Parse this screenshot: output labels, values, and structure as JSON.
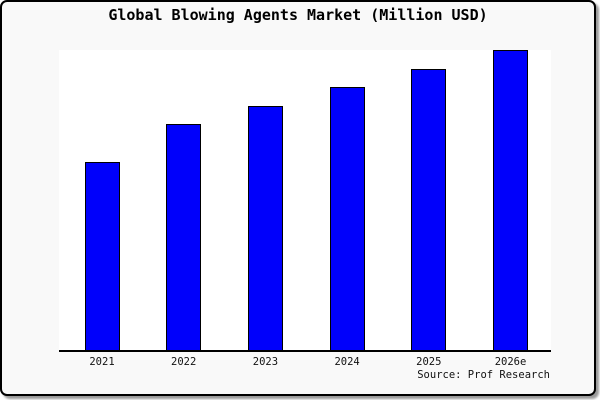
{
  "title": "Global Blowing Agents Market (Million USD)",
  "source": "Source: Prof Research",
  "colors": {
    "card_background": "#f9f9f9",
    "plot_background": "#ffffff",
    "frame_border": "#000000",
    "axis": "#000000",
    "bar_fill": "#0000fb",
    "bar_border": "#000000",
    "text": "#000000"
  },
  "chart_data": {
    "type": "bar",
    "title": "Global Blowing Agents Market (Million USD)",
    "categories": [
      "2021",
      "2022",
      "2023",
      "2024",
      "2025",
      "2026e"
    ],
    "values": [
      62.7,
      75.2,
      81.5,
      87.7,
      93.7,
      100
    ],
    "values_unit": "percent of tallest bar (2026e); no numeric axis or data labels are shown in the image",
    "xlabel": "",
    "ylabel": "",
    "ylim": [
      0,
      100
    ],
    "y_axis_visible": false,
    "gridlines": false,
    "legend": null,
    "annotations": [
      "Source: Prof Research"
    ]
  }
}
